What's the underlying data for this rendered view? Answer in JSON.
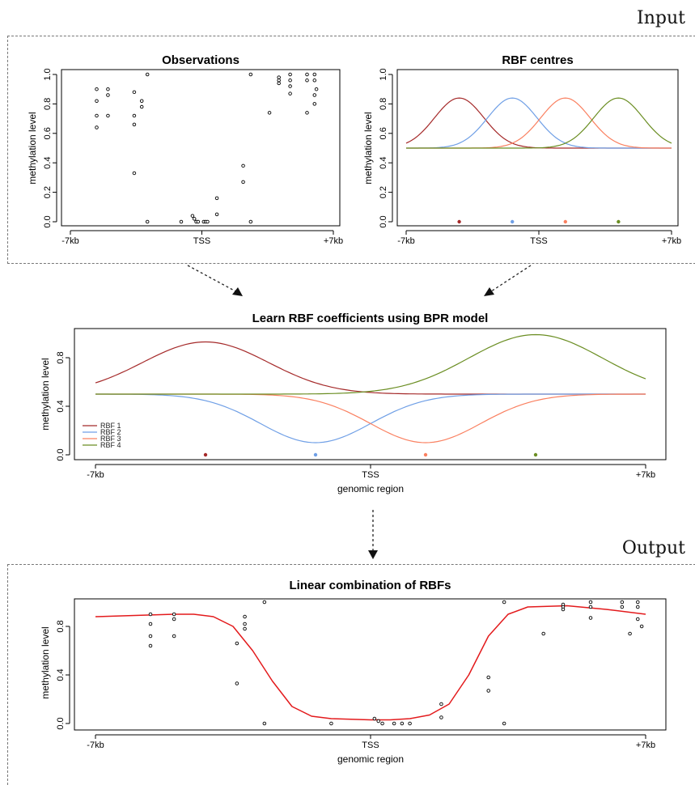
{
  "sections": {
    "input": "Input",
    "output": "Output"
  },
  "chart_data": [
    {
      "id": "observations",
      "type": "scatter",
      "title": "Observations",
      "ylabel": "methylation level",
      "xlabel": "",
      "xlim": [
        -7,
        7
      ],
      "ylim": [
        0,
        1
      ],
      "xticks": [
        {
          "v": -7,
          "label": "-7kb"
        },
        {
          "v": 0,
          "label": "TSS"
        },
        {
          "v": 7,
          "label": "+7kb"
        }
      ],
      "yticks": [
        {
          "v": 0,
          "label": "0.0"
        },
        {
          "v": 0.2,
          "label": "0.2"
        },
        {
          "v": 0.4,
          "label": "0.4"
        },
        {
          "v": 0.6,
          "label": "0.6"
        },
        {
          "v": 0.8,
          "label": "0.8"
        },
        {
          "v": 1.0,
          "label": "1.0"
        }
      ],
      "points": [
        [
          -5.6,
          0.9
        ],
        [
          -5.6,
          0.82
        ],
        [
          -5.6,
          0.72
        ],
        [
          -5.6,
          0.64
        ],
        [
          -5.0,
          0.9
        ],
        [
          -5.0,
          0.86
        ],
        [
          -5.0,
          0.72
        ],
        [
          -3.6,
          0.88
        ],
        [
          -3.6,
          0.72
        ],
        [
          -3.6,
          0.66
        ],
        [
          -3.6,
          0.33
        ],
        [
          -3.2,
          0.82
        ],
        [
          -3.2,
          0.78
        ],
        [
          -2.9,
          1.0
        ],
        [
          -2.9,
          0.0
        ],
        [
          -1.1,
          0.0
        ],
        [
          -0.5,
          0.04
        ],
        [
          -0.4,
          0.02
        ],
        [
          -0.3,
          0.0
        ],
        [
          -0.2,
          0.0
        ],
        [
          0.1,
          0.0
        ],
        [
          0.2,
          0.0
        ],
        [
          0.3,
          0.0
        ],
        [
          0.8,
          0.16
        ],
        [
          0.8,
          0.05
        ],
        [
          2.2,
          0.38
        ],
        [
          2.2,
          0.27
        ],
        [
          2.6,
          1.0
        ],
        [
          2.6,
          0.0
        ],
        [
          3.6,
          0.74
        ],
        [
          4.1,
          0.98
        ],
        [
          4.1,
          0.96
        ],
        [
          4.1,
          0.94
        ],
        [
          4.7,
          1.0
        ],
        [
          4.7,
          0.96
        ],
        [
          4.7,
          0.92
        ],
        [
          4.7,
          0.87
        ],
        [
          5.6,
          1.0
        ],
        [
          5.6,
          0.96
        ],
        [
          5.6,
          0.74
        ],
        [
          6.0,
          1.0
        ],
        [
          6.0,
          0.96
        ],
        [
          6.0,
          0.86
        ],
        [
          6.0,
          0.8
        ],
        [
          6.1,
          0.9
        ]
      ]
    },
    {
      "id": "rbf-centres",
      "type": "line",
      "title": "RBF centres",
      "ylabel": "methylation level",
      "xlabel": "",
      "xlim": [
        -7,
        7
      ],
      "ylim": [
        0,
        1
      ],
      "xticks": [
        {
          "v": -7,
          "label": "-7kb"
        },
        {
          "v": 0,
          "label": "TSS"
        },
        {
          "v": 7,
          "label": "+7kb"
        }
      ],
      "yticks": [
        {
          "v": 0,
          "label": "0.0"
        },
        {
          "v": 0.2,
          "label": "0.2"
        },
        {
          "v": 0.4,
          "label": "0.4"
        },
        {
          "v": 0.6,
          "label": "0.6"
        },
        {
          "v": 0.8,
          "label": "0.8"
        },
        {
          "v": 1.0,
          "label": "1.0"
        }
      ],
      "baseline": 0.5,
      "series": [
        {
          "center": -4.2,
          "amp": 0.34,
          "width": 1.3,
          "color": "#a52a2a"
        },
        {
          "center": -1.4,
          "amp": 0.34,
          "width": 1.3,
          "color": "#6f9fe6"
        },
        {
          "center": 1.4,
          "amp": 0.34,
          "width": 1.3,
          "color": "#fa8060"
        },
        {
          "center": 4.2,
          "amp": 0.34,
          "width": 1.3,
          "color": "#6b8e23"
        }
      ],
      "centre_markers": [
        -4.2,
        -1.4,
        1.4,
        4.2
      ]
    },
    {
      "id": "learn-rbf",
      "type": "line",
      "title": "Learn RBF coefficients using BPR model",
      "ylabel": "methylation level",
      "xlabel": "genomic region",
      "xlim": [
        -7,
        7
      ],
      "ylim": [
        0,
        1
      ],
      "xticks": [
        {
          "v": -7,
          "label": "-7kb"
        },
        {
          "v": 0,
          "label": "TSS"
        },
        {
          "v": 7,
          "label": "+7kb"
        }
      ],
      "yticks": [
        {
          "v": 0,
          "label": "0.0"
        },
        {
          "v": 0.4,
          "label": "0.4"
        },
        {
          "v": 0.8,
          "label": "0.8"
        }
      ],
      "baseline": 0.5,
      "series": [
        {
          "name": "RBF 1",
          "center": -4.2,
          "amp": 0.43,
          "width": 1.6,
          "color": "#a52a2a"
        },
        {
          "name": "RBF 2",
          "center": -1.4,
          "amp": -0.4,
          "width": 1.4,
          "color": "#6f9fe6"
        },
        {
          "name": "RBF 3",
          "center": 1.4,
          "amp": -0.4,
          "width": 1.4,
          "color": "#fa8060"
        },
        {
          "name": "RBF 4",
          "center": 4.2,
          "amp": 0.49,
          "width": 1.7,
          "color": "#6b8e23"
        }
      ],
      "centre_markers": [
        -4.2,
        -1.4,
        1.4,
        4.2
      ],
      "legend": "bottom-left"
    },
    {
      "id": "linear-combination",
      "type": "scatter",
      "title": "Linear combination of RBFs",
      "ylabel": "methylation level",
      "xlabel": "genomic region",
      "xlim": [
        -7,
        7
      ],
      "ylim": [
        0,
        1
      ],
      "xticks": [
        {
          "v": -7,
          "label": "-7kb"
        },
        {
          "v": 0,
          "label": "TSS"
        },
        {
          "v": 7,
          "label": "+7kb"
        }
      ],
      "yticks": [
        {
          "v": 0,
          "label": "0.0"
        },
        {
          "v": 0.4,
          "label": "0.4"
        },
        {
          "v": 0.8,
          "label": "0.8"
        }
      ],
      "curve": [
        [
          -7,
          0.88
        ],
        [
          -6,
          0.89
        ],
        [
          -5,
          0.9
        ],
        [
          -4.5,
          0.9
        ],
        [
          -4,
          0.88
        ],
        [
          -3.5,
          0.8
        ],
        [
          -3,
          0.6
        ],
        [
          -2.5,
          0.35
        ],
        [
          -2,
          0.14
        ],
        [
          -1.5,
          0.06
        ],
        [
          -1,
          0.04
        ],
        [
          0,
          0.03
        ],
        [
          0.5,
          0.03
        ],
        [
          1,
          0.04
        ],
        [
          1.5,
          0.07
        ],
        [
          2,
          0.16
        ],
        [
          2.5,
          0.4
        ],
        [
          3,
          0.72
        ],
        [
          3.5,
          0.9
        ],
        [
          4,
          0.96
        ],
        [
          5,
          0.97
        ],
        [
          6,
          0.94
        ],
        [
          7,
          0.9
        ]
      ],
      "curve_color": "#e31a1c",
      "points": [
        [
          -5.6,
          0.9
        ],
        [
          -5.6,
          0.82
        ],
        [
          -5.6,
          0.72
        ],
        [
          -5.6,
          0.64
        ],
        [
          -5.0,
          0.9
        ],
        [
          -5.0,
          0.86
        ],
        [
          -5.0,
          0.72
        ],
        [
          -3.4,
          0.66
        ],
        [
          -3.4,
          0.33
        ],
        [
          -3.2,
          0.88
        ],
        [
          -3.2,
          0.82
        ],
        [
          -3.2,
          0.78
        ],
        [
          -2.7,
          1.0
        ],
        [
          -2.7,
          0.0
        ],
        [
          -1.0,
          0.0
        ],
        [
          0.1,
          0.04
        ],
        [
          0.2,
          0.02
        ],
        [
          0.3,
          0.0
        ],
        [
          0.6,
          0.0
        ],
        [
          0.8,
          0.0
        ],
        [
          1.0,
          0.0
        ],
        [
          1.8,
          0.16
        ],
        [
          1.8,
          0.05
        ],
        [
          3.0,
          0.38
        ],
        [
          3.0,
          0.27
        ],
        [
          3.4,
          1.0
        ],
        [
          3.4,
          0.0
        ],
        [
          4.4,
          0.74
        ],
        [
          4.9,
          0.98
        ],
        [
          4.9,
          0.96
        ],
        [
          4.9,
          0.94
        ],
        [
          5.6,
          1.0
        ],
        [
          5.6,
          0.96
        ],
        [
          5.6,
          0.87
        ],
        [
          6.4,
          1.0
        ],
        [
          6.4,
          0.96
        ],
        [
          6.8,
          1.0
        ],
        [
          6.8,
          0.96
        ],
        [
          6.8,
          0.86
        ],
        [
          6.9,
          0.8
        ],
        [
          6.6,
          0.74
        ]
      ]
    }
  ]
}
